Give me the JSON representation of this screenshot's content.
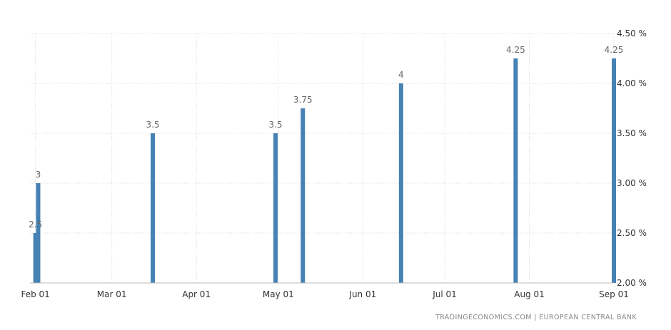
{
  "chart_data": {
    "type": "bar",
    "x_type": "date",
    "xlim": [
      "2023-01-30",
      "2023-09-01"
    ],
    "ylim": [
      2.0,
      4.5
    ],
    "y_ticks": [
      2.0,
      2.5,
      3.0,
      3.5,
      4.0,
      4.5
    ],
    "y_tick_labels": [
      "2.00 %",
      "2.50 %",
      "3.00 %",
      "3.50 %",
      "4.00 %",
      "4.50 %"
    ],
    "x_ticks": [
      "2023-02-01",
      "2023-03-01",
      "2023-04-01",
      "2023-05-01",
      "2023-06-01",
      "2023-07-01",
      "2023-08-01",
      "2023-09-01"
    ],
    "x_tick_labels": [
      "Feb 01",
      "Mar 01",
      "Apr 01",
      "May 01",
      "Jun 01",
      "Jul 01",
      "Aug 01",
      "Sep 01"
    ],
    "y_axis_side": "right",
    "grid": "dotted",
    "series": [
      {
        "x": [
          "2023-02-01",
          "2023-02-02",
          "2023-03-16",
          "2023-04-30",
          "2023-05-10",
          "2023-06-15",
          "2023-07-27",
          "2023-09-01"
        ],
        "values": [
          2.5,
          3,
          3.5,
          3.5,
          3.75,
          4,
          4.25,
          4.25
        ],
        "data_labels": [
          "2.5",
          "3",
          "3.5",
          "3.5",
          "3.75",
          "4",
          "4.25",
          "4.25"
        ],
        "color": "#4682b4"
      }
    ]
  },
  "source": {
    "text": "TRADINGECONOMICS.COM  |  EUROPEAN CENTRAL BANK"
  }
}
